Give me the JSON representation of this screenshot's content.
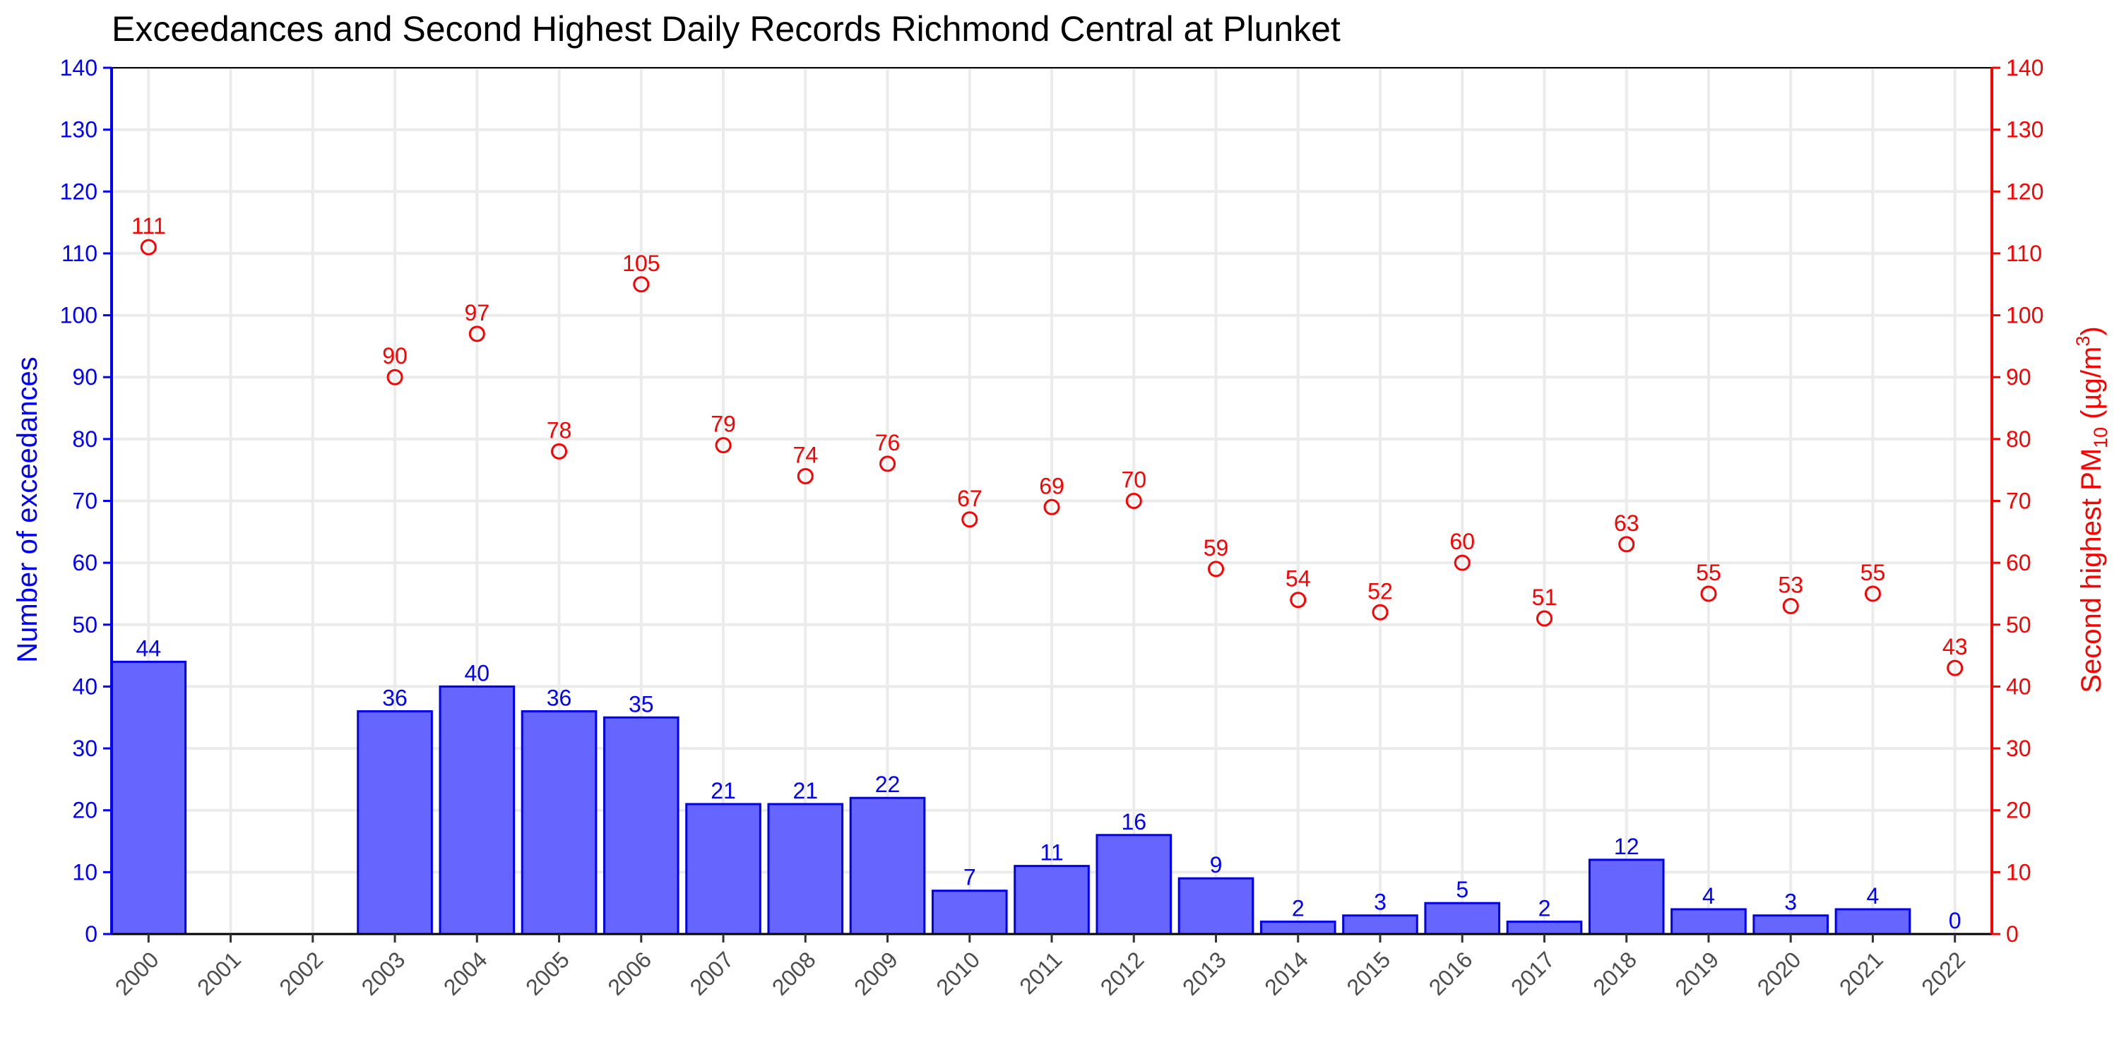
{
  "chart_data": {
    "type": "bar+scatter",
    "title": "Exceedances and Second Highest Daily Records Richmond Central at Plunket",
    "ylabel_left": "Number of exceedances",
    "ylabel_right_parts": [
      "Second highest PM",
      "10",
      " (µg/m",
      "3",
      ")"
    ],
    "categories": [
      "2000",
      "2001",
      "2002",
      "2003",
      "2004",
      "2005",
      "2006",
      "2007",
      "2008",
      "2009",
      "2010",
      "2011",
      "2012",
      "2013",
      "2014",
      "2015",
      "2016",
      "2017",
      "2018",
      "2019",
      "2020",
      "2021",
      "2022"
    ],
    "exceedances": [
      44,
      null,
      null,
      36,
      40,
      36,
      35,
      21,
      21,
      22,
      7,
      11,
      16,
      9,
      2,
      3,
      5,
      2,
      12,
      4,
      3,
      4,
      0
    ],
    "second_highest": [
      111,
      null,
      null,
      90,
      97,
      78,
      105,
      79,
      74,
      76,
      67,
      69,
      70,
      59,
      54,
      52,
      60,
      51,
      63,
      55,
      53,
      55,
      43
    ],
    "ylim_left": [
      0,
      140
    ],
    "ylim_right": [
      0,
      140
    ],
    "yticks": [
      0,
      10,
      20,
      30,
      40,
      50,
      60,
      70,
      80,
      90,
      100,
      110,
      120,
      130,
      140
    ],
    "grid": true,
    "colors": {
      "bar_fill": "#6666ff",
      "bar_stroke": "#0000ee",
      "left_axis": "#0000ff",
      "right_axis": "#ff0000",
      "grid": "#ebebeb"
    }
  }
}
